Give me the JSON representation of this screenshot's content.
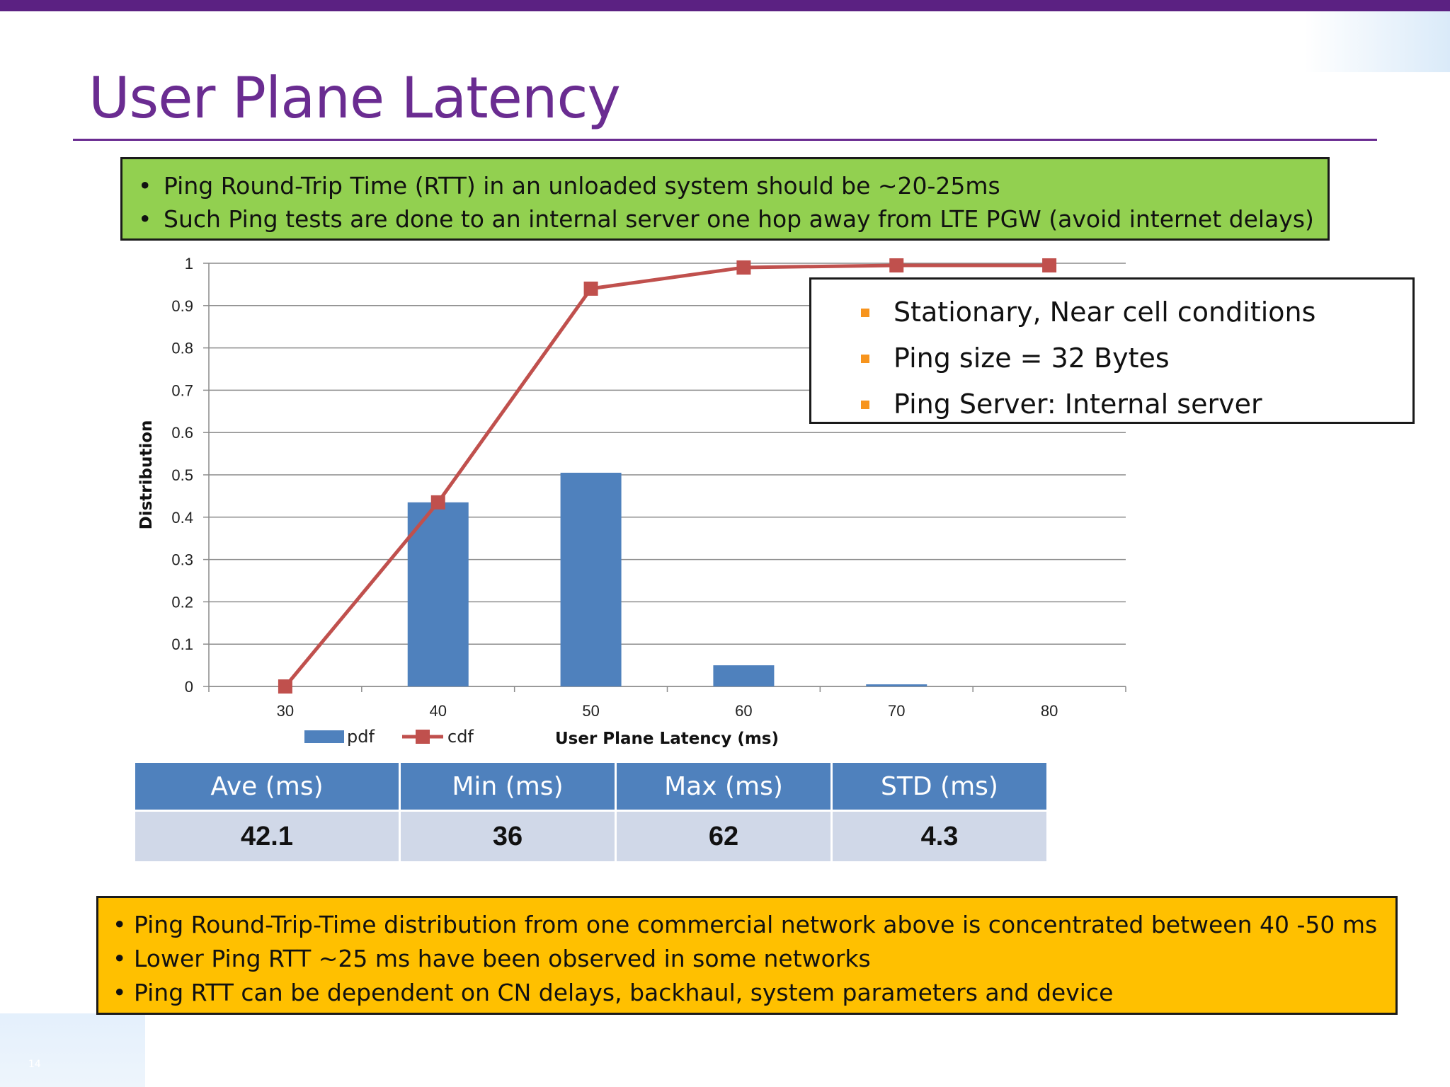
{
  "slide": {
    "title": "User Plane Latency",
    "slide_number": "14",
    "colors": {
      "title": "#6a2c91",
      "top_bar": "#5b2182",
      "green_box": "#92d050",
      "orange_box": "#ffc000",
      "table_header": "#4f81bd",
      "table_cell": "#d0d8e8"
    }
  },
  "green_box": {
    "bullets": [
      "Ping Round-Trip Time (RTT) in an unloaded system should be ~20-25ms",
      "Such Ping tests are done to an internal server one hop away from LTE PGW (avoid internet delays)"
    ]
  },
  "conditions_box": {
    "items": [
      "Stationary, Near cell conditions",
      "Ping size = 32 Bytes",
      "Ping Server: Internal server"
    ]
  },
  "chart_data": {
    "type": "bar",
    "categories": [
      "30",
      "40",
      "50",
      "60",
      "70",
      "80"
    ],
    "series": [
      {
        "name": "pdf",
        "type": "bar",
        "color": "#4f81bd",
        "values": [
          0,
          0.435,
          0.505,
          0.05,
          0.005,
          0
        ]
      },
      {
        "name": "cdf",
        "type": "line",
        "color": "#c0504d",
        "values": [
          0,
          0.435,
          0.94,
          0.99,
          0.995,
          0.995
        ]
      }
    ],
    "title": "",
    "xlabel": "User Plane Latency  (ms)",
    "ylabel": "Distribution",
    "ylim": [
      0,
      1
    ],
    "yticks": [
      "0",
      "0.1",
      "0.2",
      "0.3",
      "0.4",
      "0.5",
      "0.6",
      "0.7",
      "0.8",
      "0.9",
      "1"
    ],
    "grid": true,
    "legend": "bottom-left"
  },
  "stats_table": {
    "headers": [
      "Ave (ms)",
      "Min (ms)",
      "Max (ms)",
      "STD (ms)"
    ],
    "values": [
      "42.1",
      "36",
      "62",
      "4.3"
    ]
  },
  "orange_box": {
    "bullets": [
      "Ping Round-Trip-Time distribution from one commercial network above is concentrated between 40 -50 ms",
      "Lower Ping RTT ~25 ms have been observed in some networks",
      "Ping RTT can be dependent on CN delays, backhaul, system parameters and device"
    ]
  }
}
